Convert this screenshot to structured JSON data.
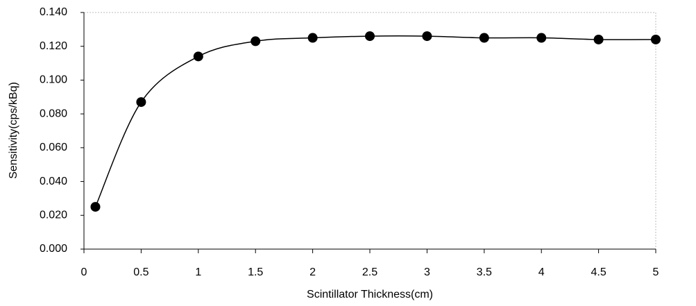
{
  "chart_data": {
    "type": "scatter",
    "line": "smooth",
    "color": "#000000",
    "x_label": "Scintillator Thickness(cm)",
    "y_label": "Sensitivity(cps/kBq)",
    "x": [
      0.1,
      0.5,
      1,
      1.5,
      2,
      2.5,
      3,
      3.5,
      4,
      4.5,
      5
    ],
    "values": [
      0.025,
      0.087,
      0.114,
      0.123,
      0.125,
      0.126,
      0.126,
      0.125,
      0.125,
      0.124,
      0.124
    ],
    "xlim": [
      0,
      5
    ],
    "xticks": [
      0,
      0.5,
      1,
      1.5,
      2,
      2.5,
      3,
      3.5,
      4,
      4.5,
      5
    ],
    "ylim": [
      0,
      0.14
    ],
    "yticks": [
      {
        "value": 0,
        "label": "0.000"
      },
      {
        "value": 0.02,
        "label": "0.020"
      },
      {
        "value": 0.04,
        "label": "0.040"
      },
      {
        "value": 0.06,
        "label": "0.060"
      },
      {
        "value": 0.08,
        "label": "0.080"
      },
      {
        "value": 0.1,
        "label": "0.100"
      },
      {
        "value": 0.12,
        "label": "0.120"
      },
      {
        "value": 0.14,
        "label": "0.140"
      }
    ]
  }
}
